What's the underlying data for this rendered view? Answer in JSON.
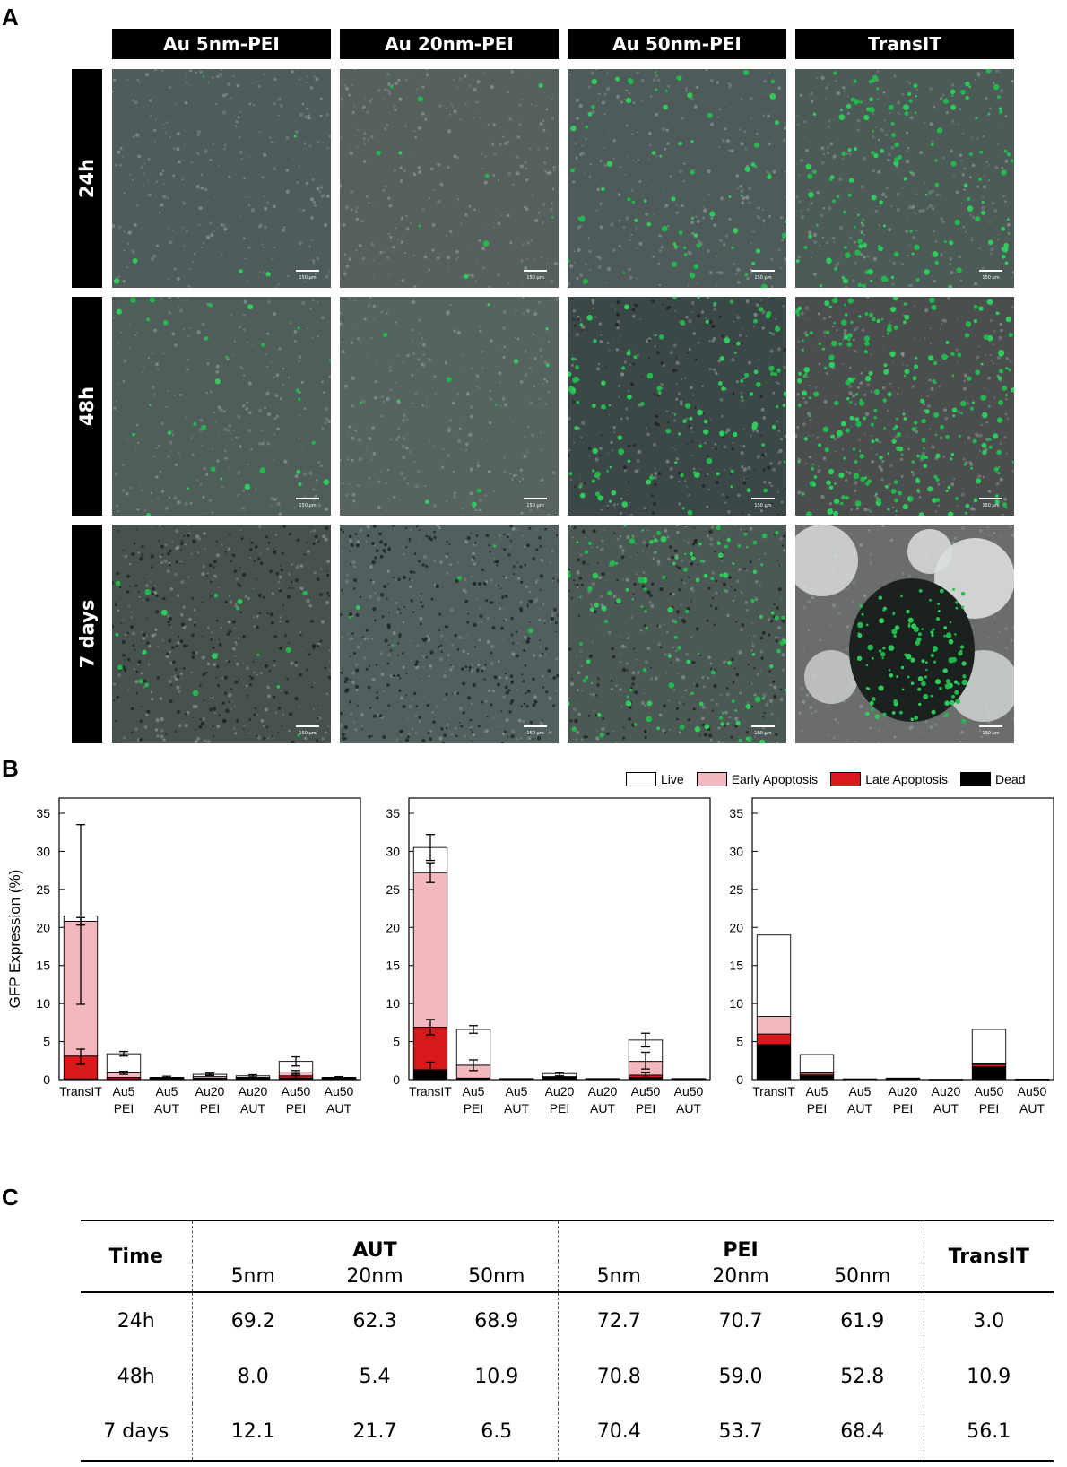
{
  "panels": {
    "a": "A",
    "b": "B",
    "c": "C"
  },
  "panel_a": {
    "columns": [
      "Au 5nm-PEI",
      "Au 20nm-PEI",
      "Au 50nm-PEI",
      "TransIT"
    ],
    "rows": [
      "24h",
      "48h",
      "7 days"
    ],
    "scale_bar_label": "150 μm"
  },
  "legend": [
    {
      "label": "Live",
      "color": "#ffffff"
    },
    {
      "label": "Early Apoptosis",
      "color": "#f2b8bd"
    },
    {
      "label": "Late Apoptosis",
      "color": "#d7191c"
    },
    {
      "label": "Dead",
      "color": "#000000"
    }
  ],
  "chart_data": [
    {
      "type": "bar",
      "stacked": true,
      "ylabel": "GFP Expression (%)",
      "ylim": [
        0,
        37
      ],
      "yticks": [
        0,
        5,
        10,
        15,
        20,
        25,
        30,
        35
      ],
      "categories": [
        "TransIT",
        "Au5 PEI",
        "Au5 AUT",
        "Au20 PEI",
        "Au20 AUT",
        "Au50 PEI",
        "Au50 AUT"
      ],
      "series": [
        {
          "name": "Dead",
          "values": [
            0.1,
            0.1,
            0.1,
            0.1,
            0.1,
            0.2,
            0.1
          ]
        },
        {
          "name": "Late Apoptosis",
          "values": [
            3.0,
            0.2,
            0.05,
            0.1,
            0.1,
            0.3,
            0.05
          ]
        },
        {
          "name": "Early Apoptosis",
          "values": [
            17.7,
            0.6,
            0.05,
            0.2,
            0.1,
            0.5,
            0.05
          ]
        },
        {
          "name": "Live",
          "values": [
            0.7,
            2.5,
            0.1,
            0.3,
            0.2,
            1.4,
            0.1
          ]
        }
      ],
      "error_bars": [
        [
          21.7,
          11.8
        ],
        [
          3.4,
          0.3
        ],
        [
          0.35,
          0.1
        ],
        [
          0.7,
          0.15
        ],
        [
          0.5,
          0.15
        ],
        [
          2.4,
          0.6
        ],
        [
          0.3,
          0.1
        ]
      ],
      "error_bars_inner": [
        [
          20.8,
          0.5
        ],
        [
          0.9,
          0.2
        ],
        null,
        null,
        null,
        [
          0.9,
          0.3
        ],
        null
      ],
      "error_bars_low": [
        [
          3.0,
          1.0
        ],
        null,
        null,
        null,
        null,
        [
          0.5,
          0.3
        ],
        null
      ]
    },
    {
      "type": "bar",
      "stacked": true,
      "ylim": [
        0,
        37
      ],
      "yticks": [
        0,
        5,
        10,
        15,
        20,
        25,
        30,
        35
      ],
      "categories": [
        "TransIT",
        "Au5 PEI",
        "Au5 AUT",
        "Au20 PEI",
        "Au20 AUT",
        "Au50 PEI",
        "Au50 AUT"
      ],
      "series": [
        {
          "name": "Dead",
          "values": [
            1.3,
            0.1,
            0.05,
            0.2,
            0.05,
            0.3,
            0.05
          ]
        },
        {
          "name": "Late Apoptosis",
          "values": [
            5.6,
            0.1,
            0.02,
            0.1,
            0.02,
            0.3,
            0.02
          ]
        },
        {
          "name": "Early Apoptosis",
          "values": [
            20.3,
            1.7,
            0.02,
            0.1,
            0.02,
            1.8,
            0.02
          ]
        },
        {
          "name": "Live",
          "values": [
            3.3,
            4.7,
            0.05,
            0.4,
            0.05,
            2.8,
            0.05
          ]
        }
      ],
      "error_bars": [
        [
          30.5,
          1.7
        ],
        [
          6.6,
          0.5
        ],
        null,
        [
          0.7,
          0.2
        ],
        null,
        [
          5.2,
          0.9
        ],
        null
      ],
      "error_bars_inner": [
        [
          27.2,
          1.3
        ],
        [
          1.9,
          0.7
        ],
        null,
        null,
        null,
        [
          2.5,
          1.1
        ],
        null
      ],
      "error_bars_low": [
        [
          6.9,
          1.0
        ],
        null,
        null,
        null,
        null,
        [
          0.6,
          0.3
        ],
        null
      ],
      "error_bars_dead": [
        [
          1.3,
          1.0
        ],
        null,
        null,
        null,
        null,
        null,
        null
      ]
    },
    {
      "type": "bar",
      "stacked": true,
      "ylim": [
        0,
        37
      ],
      "yticks": [
        0,
        5,
        10,
        15,
        20,
        25,
        30,
        35
      ],
      "categories": [
        "TransIT",
        "Au5 PEI",
        "Au5 AUT",
        "Au20 PEI",
        "Au20 AUT",
        "Au50 PEI",
        "Au50 AUT"
      ],
      "series": [
        {
          "name": "Dead",
          "values": [
            4.6,
            0.5,
            0.05,
            0.05,
            0.02,
            1.7,
            0.02
          ]
        },
        {
          "name": "Late Apoptosis",
          "values": [
            1.4,
            0.2,
            0.0,
            0.05,
            0.0,
            0.3,
            0.0
          ]
        },
        {
          "name": "Early Apoptosis",
          "values": [
            2.3,
            0.2,
            0.0,
            0.0,
            0.0,
            0.1,
            0.0
          ]
        },
        {
          "name": "Live",
          "values": [
            10.7,
            2.4,
            0.05,
            0.1,
            0.02,
            4.5,
            0.05
          ]
        }
      ]
    }
  ],
  "table": {
    "time_header": "Time",
    "group_aut": "AUT",
    "group_pei": "PEI",
    "transit_header": "TransIT",
    "sizes": [
      "5nm",
      "20nm",
      "50nm"
    ],
    "rows": [
      {
        "time": "24h",
        "aut": [
          "69.2",
          "62.3",
          "68.9"
        ],
        "pei": [
          "72.7",
          "70.7",
          "61.9"
        ],
        "transit": "3.0"
      },
      {
        "time": "48h",
        "aut": [
          "8.0",
          "5.4",
          "10.9"
        ],
        "pei": [
          "70.8",
          "59.0",
          "52.8"
        ],
        "transit": "10.9"
      },
      {
        "time": "7 days",
        "aut": [
          "12.1",
          "21.7",
          "6.5"
        ],
        "pei": [
          "70.4",
          "53.7",
          "68.4"
        ],
        "transit": "56.1"
      }
    ]
  }
}
